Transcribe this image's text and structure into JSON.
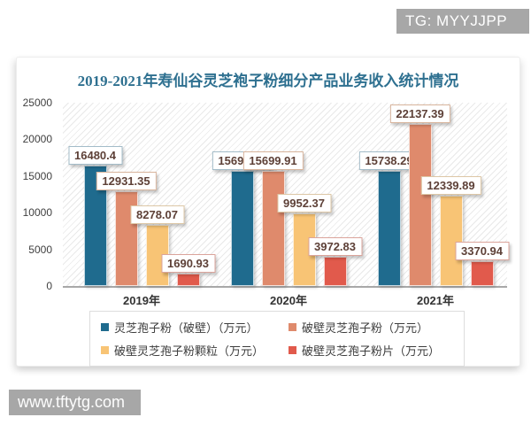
{
  "watermarks": {
    "top": "TG: MYYJJPP",
    "bottom": "www.tftytg.com"
  },
  "chart_data": {
    "type": "bar",
    "title": "2019-2021年寿仙谷灵芝袍子粉细分产品业务收入统计情况",
    "title_color": "#2e7090",
    "categories": [
      "2019年",
      "2020年",
      "2021年"
    ],
    "series": [
      {
        "name": "灵芝孢子粉（破壁）（万元）",
        "color": "#1f6b8e",
        "label_border": "#a3bcc9",
        "values": [
          16480.4,
          15695.07,
          15738.29
        ]
      },
      {
        "name": "破壁灵芝孢子粉（万元）",
        "color": "#df8a6c",
        "label_border": "#d8b49c",
        "values": [
          12931.35,
          15699.91,
          22137.39
        ]
      },
      {
        "name": "破壁灵芝孢子粉颗粒（万元）",
        "color": "#f8c475",
        "label_border": "#ddc7a6",
        "values": [
          8278.07,
          9952.37,
          12339.89
        ]
      },
      {
        "name": "破壁灵芝孢子粉片（万元）",
        "color": "#e15a4c",
        "label_border": "#dba49b",
        "values": [
          1690.93,
          3972.83,
          3370.94
        ]
      }
    ],
    "ylim": [
      0,
      25000
    ],
    "yticks": [
      25000,
      20000,
      15000,
      10000,
      5000,
      0
    ],
    "unit": "万元",
    "grid": "diagonal-hatch-background",
    "legend_position": "bottom"
  }
}
